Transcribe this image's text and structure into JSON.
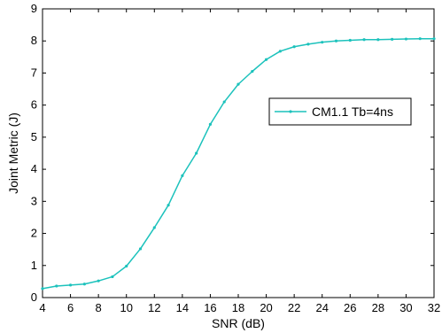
{
  "chart_data": {
    "type": "line",
    "title": "",
    "xlabel": "SNR (dB)",
    "ylabel": "Joint Metric (J)",
    "xlim": [
      4,
      32
    ],
    "ylim": [
      0,
      9
    ],
    "xticks": [
      4,
      6,
      8,
      10,
      12,
      14,
      16,
      18,
      20,
      22,
      24,
      26,
      28,
      30,
      32
    ],
    "yticks": [
      0,
      1,
      2,
      3,
      4,
      5,
      6,
      7,
      8,
      9
    ],
    "grid": false,
    "legend_position": "center-right",
    "series": [
      {
        "name": "CM1.1 Tb=4ns",
        "color": "#1cc2bc",
        "marker": "point",
        "x": [
          4,
          5,
          6,
          7,
          8,
          9,
          10,
          11,
          12,
          13,
          14,
          15,
          16,
          17,
          18,
          19,
          20,
          21,
          22,
          23,
          24,
          25,
          26,
          27,
          28,
          29,
          30,
          31,
          32
        ],
        "y": [
          0.28,
          0.36,
          0.39,
          0.42,
          0.52,
          0.65,
          0.98,
          1.52,
          2.18,
          2.88,
          3.8,
          4.5,
          5.4,
          6.1,
          6.65,
          7.05,
          7.42,
          7.68,
          7.82,
          7.9,
          7.96,
          8.0,
          8.02,
          8.04,
          8.04,
          8.05,
          8.06,
          8.07,
          8.07
        ]
      }
    ]
  }
}
